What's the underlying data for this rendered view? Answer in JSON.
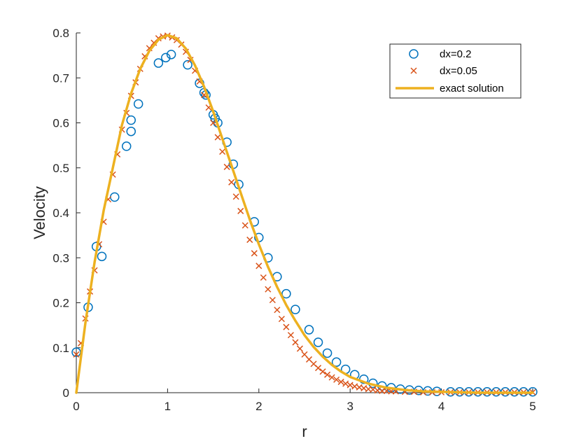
{
  "chart_data": {
    "type": "scatter",
    "title": "",
    "xlabel": "r",
    "ylabel": "Velocity",
    "xlim": [
      0,
      5
    ],
    "ylim": [
      0,
      0.8
    ],
    "xticks": [
      "0",
      "1",
      "2",
      "3",
      "4",
      "5"
    ],
    "yticks": [
      "0",
      "0.1",
      "0.2",
      "0.3",
      "0.4",
      "0.5",
      "0.6",
      "0.7",
      "0.8"
    ],
    "grid": false,
    "legend_position": "top-right",
    "series": [
      {
        "name": "dx=0.2",
        "marker": "circle",
        "color": "#0072BD",
        "x": [
          0.0,
          0.13,
          0.22,
          0.28,
          0.42,
          0.55,
          0.6,
          0.6,
          0.68,
          0.9,
          0.98,
          1.04,
          1.22,
          1.35,
          1.4,
          1.42,
          1.5,
          1.52,
          1.55,
          1.65,
          1.72,
          1.78,
          1.95,
          2.0,
          2.1,
          2.2,
          2.3,
          2.4,
          2.55,
          2.65,
          2.75,
          2.85,
          2.95,
          3.05,
          3.15,
          3.25,
          3.35,
          3.45,
          3.55,
          3.65,
          3.75,
          3.85,
          3.95,
          4.1,
          4.2,
          4.3,
          4.4,
          4.5,
          4.6,
          4.7,
          4.8,
          4.9,
          5.0
        ],
        "y": [
          0.09,
          0.19,
          0.325,
          0.303,
          0.435,
          0.548,
          0.581,
          0.606,
          0.642,
          0.733,
          0.745,
          0.752,
          0.729,
          0.688,
          0.667,
          0.662,
          0.618,
          0.61,
          0.6,
          0.557,
          0.508,
          0.463,
          0.38,
          0.345,
          0.3,
          0.258,
          0.22,
          0.185,
          0.14,
          0.112,
          0.088,
          0.068,
          0.052,
          0.04,
          0.03,
          0.021,
          0.015,
          0.011,
          0.008,
          0.006,
          0.005,
          0.004,
          0.003,
          0.002,
          0.002,
          0.002,
          0.002,
          0.002,
          0.002,
          0.002,
          0.002,
          0.002,
          0.002
        ]
      },
      {
        "name": "dx=0.05",
        "marker": "x",
        "color": "#D95319",
        "x": [
          0.0,
          0.05,
          0.1,
          0.15,
          0.2,
          0.25,
          0.3,
          0.35,
          0.4,
          0.45,
          0.5,
          0.55,
          0.6,
          0.65,
          0.7,
          0.75,
          0.8,
          0.85,
          0.9,
          0.95,
          1.0,
          1.05,
          1.1,
          1.15,
          1.2,
          1.25,
          1.3,
          1.35,
          1.4,
          1.45,
          1.5,
          1.55,
          1.6,
          1.65,
          1.7,
          1.75,
          1.8,
          1.85,
          1.9,
          1.95,
          2.0,
          2.05,
          2.1,
          2.15,
          2.2,
          2.25,
          2.3,
          2.35,
          2.4,
          2.45,
          2.5,
          2.55,
          2.6,
          2.65,
          2.7,
          2.75,
          2.8,
          2.85,
          2.9,
          2.95,
          3.0,
          3.05,
          3.1,
          3.15,
          3.2,
          3.25,
          3.3,
          3.35,
          3.4,
          3.45,
          3.5,
          3.6,
          3.7,
          3.8,
          3.9,
          4.0,
          4.1,
          4.2,
          4.3,
          4.4,
          4.5,
          4.6,
          4.7,
          4.8,
          4.9,
          5.0
        ],
        "y": [
          0.085,
          0.11,
          0.165,
          0.225,
          0.272,
          0.33,
          0.38,
          0.43,
          0.485,
          0.53,
          0.585,
          0.622,
          0.66,
          0.69,
          0.72,
          0.748,
          0.766,
          0.778,
          0.788,
          0.792,
          0.794,
          0.79,
          0.784,
          0.774,
          0.758,
          0.74,
          0.716,
          0.692,
          0.662,
          0.634,
          0.6,
          0.568,
          0.536,
          0.502,
          0.468,
          0.436,
          0.404,
          0.372,
          0.34,
          0.31,
          0.282,
          0.256,
          0.23,
          0.206,
          0.184,
          0.164,
          0.146,
          0.128,
          0.112,
          0.098,
          0.085,
          0.074,
          0.064,
          0.055,
          0.047,
          0.04,
          0.034,
          0.029,
          0.024,
          0.02,
          0.017,
          0.014,
          0.012,
          0.01,
          0.008,
          0.007,
          0.005,
          0.004,
          0.004,
          0.003,
          0.003,
          0.002,
          0.002,
          0.001,
          0.001,
          0.001,
          0.001,
          0.001,
          0.001,
          0.001,
          0.001,
          0.001,
          0.001,
          0.001,
          0.001,
          0.001
        ]
      },
      {
        "name": "exact solution",
        "marker": "line",
        "color": "#EDB120",
        "x": [
          0.0,
          0.1,
          0.2,
          0.3,
          0.4,
          0.5,
          0.6,
          0.7,
          0.8,
          0.9,
          1.0,
          1.1,
          1.2,
          1.3,
          1.4,
          1.5,
          1.6,
          1.7,
          1.8,
          1.9,
          2.0,
          2.1,
          2.2,
          2.3,
          2.4,
          2.5,
          2.6,
          2.7,
          2.8,
          2.9,
          3.0,
          3.2,
          3.4,
          3.6,
          3.8,
          4.0,
          4.2,
          4.4,
          4.6,
          4.8,
          5.0
        ],
        "y": [
          0.0,
          0.155,
          0.29,
          0.405,
          0.5,
          0.595,
          0.665,
          0.72,
          0.76,
          0.785,
          0.795,
          0.788,
          0.765,
          0.728,
          0.68,
          0.625,
          0.565,
          0.505,
          0.445,
          0.385,
          0.33,
          0.28,
          0.235,
          0.195,
          0.16,
          0.128,
          0.102,
          0.08,
          0.062,
          0.047,
          0.035,
          0.02,
          0.011,
          0.006,
          0.003,
          0.002,
          0.001,
          0.0,
          0.0,
          0.0,
          0.0
        ]
      }
    ]
  }
}
